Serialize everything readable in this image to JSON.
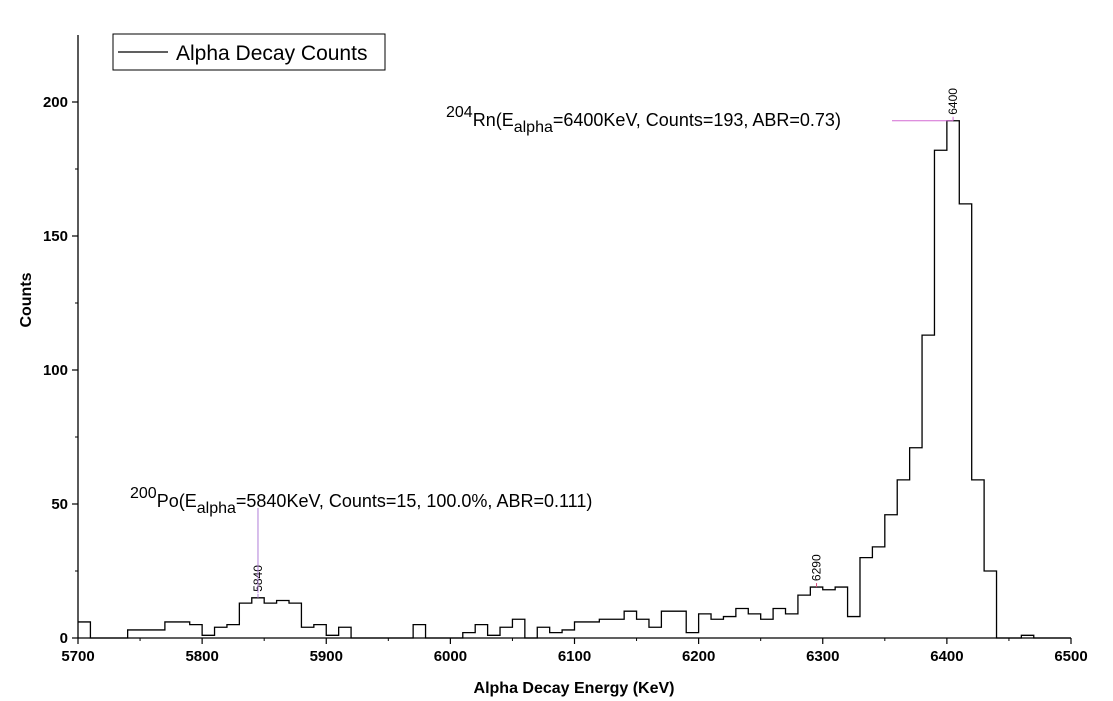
{
  "chart_data": {
    "type": "line",
    "step": true,
    "xlabel": "Alpha Decay Energy (KeV)",
    "ylabel": "Counts",
    "xlim": [
      5700,
      6500
    ],
    "ylim": [
      0,
      225
    ],
    "x_ticks": [
      5700,
      5800,
      5900,
      6000,
      6100,
      6200,
      6300,
      6400,
      6500
    ],
    "y_ticks": [
      0,
      50,
      100,
      150,
      200
    ],
    "legend": {
      "position": "top-left",
      "entries": [
        "Alpha Decay Counts"
      ]
    },
    "bin_width": 10,
    "series": [
      {
        "name": "Alpha Decay Counts",
        "color": "#000000",
        "x": [
          5700,
          5710,
          5720,
          5730,
          5740,
          5750,
          5760,
          5770,
          5780,
          5790,
          5800,
          5810,
          5820,
          5830,
          5840,
          5850,
          5860,
          5870,
          5880,
          5890,
          5900,
          5910,
          5920,
          5930,
          5940,
          5950,
          5960,
          5970,
          5980,
          5990,
          6000,
          6010,
          6020,
          6030,
          6040,
          6050,
          6060,
          6070,
          6080,
          6090,
          6100,
          6110,
          6120,
          6130,
          6140,
          6150,
          6160,
          6170,
          6180,
          6190,
          6200,
          6210,
          6220,
          6230,
          6240,
          6250,
          6260,
          6270,
          6280,
          6290,
          6300,
          6310,
          6320,
          6330,
          6340,
          6350,
          6360,
          6370,
          6380,
          6390,
          6400,
          6410,
          6420,
          6430,
          6440,
          6450,
          6460,
          6470,
          6480,
          6490
        ],
        "values": [
          6,
          0,
          0,
          0,
          3,
          3,
          3,
          6,
          6,
          5,
          1,
          4,
          5,
          13,
          15,
          13,
          14,
          13,
          4,
          5,
          1,
          4,
          0,
          0,
          0,
          0,
          0,
          5,
          0,
          0,
          0,
          2,
          5,
          1,
          4,
          7,
          0,
          4,
          2,
          3,
          6,
          6,
          7,
          7,
          10,
          7,
          4,
          10,
          10,
          2,
          9,
          7,
          8,
          11,
          9,
          7,
          11,
          9,
          16,
          19,
          18,
          19,
          8,
          30,
          34,
          46,
          59,
          71,
          113,
          182,
          193,
          162,
          59,
          25,
          0,
          0,
          1,
          0,
          0,
          0
        ]
      }
    ],
    "annotations": [
      {
        "id": "po",
        "x": 5840,
        "y": 15,
        "peak_label": "5840",
        "label_sup": "200",
        "label_main": "Po(E",
        "label_sub": "alpha",
        "label_rest": "=5840KeV, Counts=15, 100.0%, ABR=0.111)",
        "marker_color": "#b07ed8"
      },
      {
        "id": "rn",
        "x": 6400,
        "y": 193,
        "peak_label": "6400",
        "label_sup": "204",
        "label_main": "Rn(E",
        "label_sub": "alpha",
        "label_rest": "=6400KeV, Counts=193, ABR=0.73)",
        "marker_color": "#d46ad4"
      },
      {
        "id": "p6290",
        "x": 6290,
        "y": 19,
        "peak_label": "6290",
        "marker_color": "#d44a7a"
      }
    ]
  }
}
